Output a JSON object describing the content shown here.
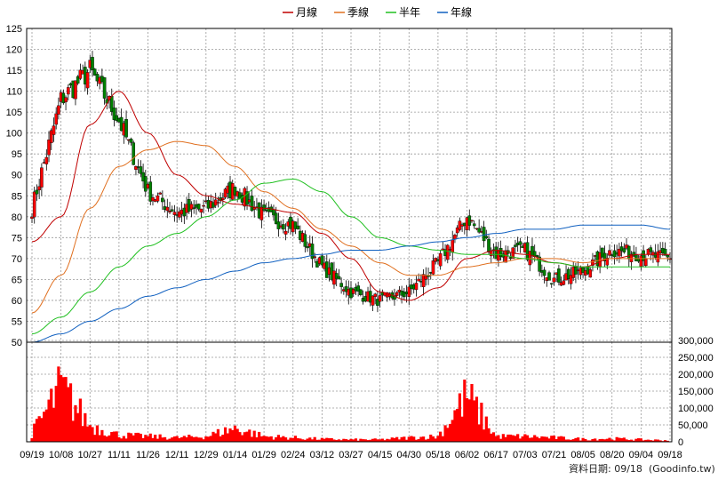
{
  "chart_data": {
    "type": "candlestick",
    "legend": {
      "placement": "top-center",
      "items": [
        {
          "name": "月線",
          "color": "#c00000"
        },
        {
          "name": "季線",
          "color": "#e07020"
        },
        {
          "name": "半年",
          "color": "#20c020"
        },
        {
          "name": "年線",
          "color": "#1060c0"
        }
      ]
    },
    "price_axis": {
      "position": "left",
      "ylim": [
        50,
        125
      ],
      "ticks": [
        "125",
        "120",
        "115",
        "110",
        "105",
        "100",
        "95",
        "90",
        "85",
        "80",
        "75",
        "70",
        "65",
        "60",
        "55",
        "50"
      ]
    },
    "volume_axis": {
      "position": "right",
      "ylim": [
        0,
        300000
      ],
      "ticks": [
        "300,000",
        "250,000",
        "200,000",
        "150,000",
        "100,000",
        "50,000",
        "0"
      ]
    },
    "x_ticks": [
      "09/19",
      "10/08",
      "10/27",
      "11/11",
      "11/26",
      "12/11",
      "12/29",
      "01/14",
      "01/29",
      "02/24",
      "03/12",
      "03/27",
      "04/15",
      "04/30",
      "05/18",
      "06/02",
      "06/17",
      "07/03",
      "07/21",
      "08/05",
      "08/20",
      "09/04",
      "09/18"
    ],
    "grid": true,
    "colors": {
      "up": "#ff0000",
      "down": "#008000",
      "volume": "#ff0000"
    },
    "price_key_points": [
      {
        "x": "09/19",
        "close": 82
      },
      {
        "x": "10/08",
        "close": 108
      },
      {
        "x": "10/27",
        "close": 115
      },
      {
        "x": "11/11",
        "close": 103
      },
      {
        "x": "11/26",
        "close": 86
      },
      {
        "x": "12/11",
        "close": 81
      },
      {
        "x": "12/29",
        "close": 82
      },
      {
        "x": "01/14",
        "close": 87
      },
      {
        "x": "01/29",
        "close": 80
      },
      {
        "x": "02/24",
        "close": 78
      },
      {
        "x": "03/12",
        "close": 68
      },
      {
        "x": "03/27",
        "close": 62
      },
      {
        "x": "04/15",
        "close": 60
      },
      {
        "x": "04/30",
        "close": 62
      },
      {
        "x": "05/18",
        "close": 69
      },
      {
        "x": "06/02",
        "close": 80
      },
      {
        "x": "06/17",
        "close": 71
      },
      {
        "x": "07/03",
        "close": 72
      },
      {
        "x": "07/21",
        "close": 65
      },
      {
        "x": "08/05",
        "close": 67
      },
      {
        "x": "08/20",
        "close": 72
      },
      {
        "x": "09/04",
        "close": 71
      },
      {
        "x": "09/18",
        "close": 70
      }
    ],
    "moving_averages": {
      "月線": [
        74,
        80,
        102,
        110,
        100,
        90,
        85,
        83,
        82,
        81,
        76,
        70,
        62,
        60,
        63,
        70,
        72,
        71,
        69,
        68,
        70,
        71,
        71
      ],
      "季線": [
        57,
        66,
        82,
        92,
        96,
        98,
        97,
        92,
        86,
        82,
        77,
        73,
        69,
        66,
        66,
        68,
        69,
        70,
        70,
        69,
        70,
        70,
        70
      ],
      "半年": [
        52,
        56,
        62,
        68,
        73,
        76,
        80,
        84,
        88,
        89,
        86,
        80,
        75,
        73,
        72,
        71,
        71,
        70,
        69,
        68,
        68,
        68,
        68
      ],
      "年線": [
        50,
        52,
        55,
        58,
        61,
        63,
        65,
        67,
        69,
        70,
        71,
        72,
        72,
        73,
        74,
        75,
        76,
        77,
        77,
        78,
        78,
        78,
        77
      ]
    },
    "volume_key_points": [
      {
        "x": "09/19",
        "value": 30000
      },
      {
        "x": "10/08",
        "value": 200000
      },
      {
        "x": "10/27",
        "value": 60000
      },
      {
        "x": "11/11",
        "value": 25000
      },
      {
        "x": "11/26",
        "value": 20000
      },
      {
        "x": "12/11",
        "value": 15000
      },
      {
        "x": "12/29",
        "value": 20000
      },
      {
        "x": "01/14",
        "value": 50000
      },
      {
        "x": "01/29",
        "value": 20000
      },
      {
        "x": "02/24",
        "value": 15000
      },
      {
        "x": "03/12",
        "value": 10000
      },
      {
        "x": "03/27",
        "value": 8000
      },
      {
        "x": "04/15",
        "value": 8000
      },
      {
        "x": "04/30",
        "value": 15000
      },
      {
        "x": "05/18",
        "value": 20000
      },
      {
        "x": "06/02",
        "value": 170000
      },
      {
        "x": "06/17",
        "value": 20000
      },
      {
        "x": "07/03",
        "value": 20000
      },
      {
        "x": "07/21",
        "value": 15000
      },
      {
        "x": "08/05",
        "value": 10000
      },
      {
        "x": "08/20",
        "value": 12000
      },
      {
        "x": "09/04",
        "value": 8000
      },
      {
        "x": "09/18",
        "value": 5000
      }
    ]
  },
  "footer": {
    "label": "資料日期: 09/18",
    "source": "(Goodinfo.tw)"
  }
}
